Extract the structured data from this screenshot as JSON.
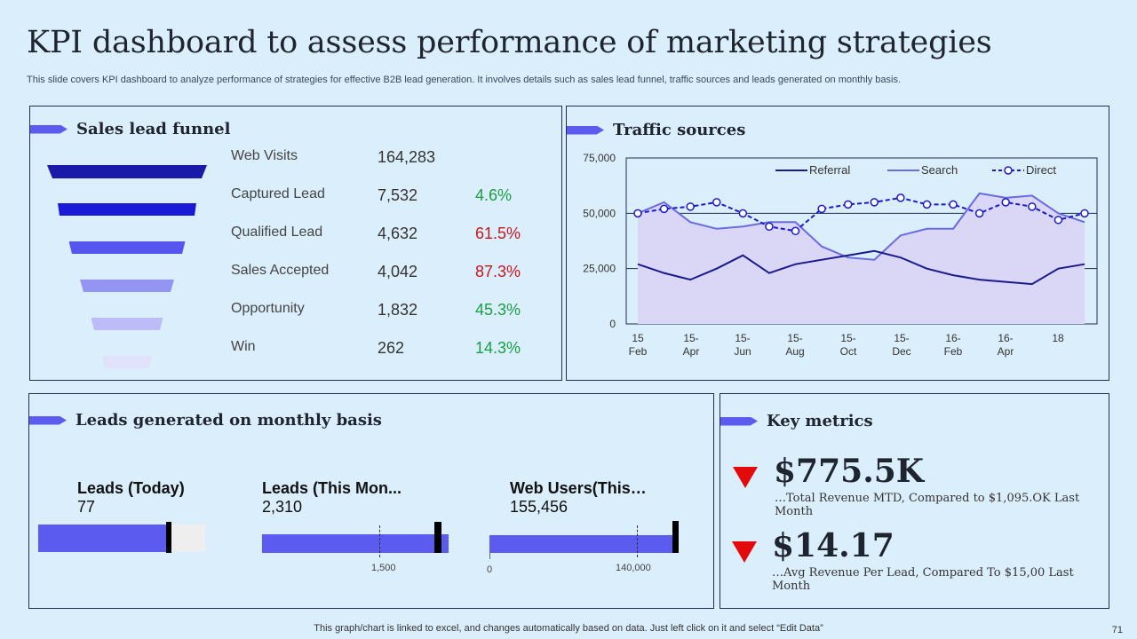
{
  "title": "KPI dashboard to assess performance of marketing strategies",
  "subtitle": "This slide covers KPI dashboard to analyze performance of strategies for effective B2B lead generation. It involves details such as sales lead funnel, traffic sources and leads generated on monthly basis.",
  "colors": {
    "accent": "#5b5bf0",
    "background": "#dbeefb",
    "positive": "#18a043",
    "negative": "#c8161d"
  },
  "funnel": {
    "heading": "Sales lead funnel",
    "rows": [
      {
        "label": "Web Visits",
        "value": "164,283",
        "pct": "",
        "color": "#1a1aa8"
      },
      {
        "label": "Captured Lead",
        "value": "7,532",
        "pct": "4.6%",
        "pct_status": "positive",
        "color": "#1a1ad6"
      },
      {
        "label": "Qualified Lead",
        "value": "4,632",
        "pct": "61.5%",
        "pct_status": "negative",
        "color": "#5656ee"
      },
      {
        "label": "Sales Accepted",
        "value": "4,042",
        "pct": "87.3%",
        "pct_status": "negative",
        "color": "#9494f5"
      },
      {
        "label": "Opportunity",
        "value": "1,832",
        "pct": "45.3%",
        "pct_status": "positive",
        "color": "#bcbcf8"
      },
      {
        "label": "Win",
        "value": "262",
        "pct": "14.3%",
        "pct_status": "positive",
        "color": "#e1e1fb"
      }
    ]
  },
  "traffic": {
    "heading": "Traffic sources"
  },
  "leads": {
    "heading": "Leads generated on monthly basis",
    "today": {
      "title": "Leads (Today)",
      "value": "77"
    },
    "month": {
      "title": "Leads (This Mon...",
      "value": "2,310",
      "tick_label": "1,500"
    },
    "web": {
      "title": "Web Users(This…",
      "value": "155,456",
      "tick0_label": "0",
      "tick_label": "140,000"
    }
  },
  "key_metrics": {
    "heading": "Key metrics",
    "items": [
      {
        "big": "$775.5K",
        "desc": "…Total Revenue MTD, Compared to $1,095.OK Last Month",
        "trend": "down"
      },
      {
        "big": "$14.17",
        "desc": "…Avg Revenue Per Lead, Compared To $15,00 Last Month",
        "trend": "down"
      }
    ]
  },
  "footer": "This graph/chart is linked to excel,  and changes automatically based on data. Just left click on it and select “Edit Data”",
  "page_number": "71",
  "chart_data": {
    "type": "line",
    "title": "Traffic sources",
    "x_ticks": [
      "15 Feb",
      "15- Apr",
      "15- Jun",
      "15- Aug",
      "15- Oct",
      "15- Dec",
      "16- Feb",
      "16- Apr",
      "18"
    ],
    "y_ticks": [
      "75,000",
      "50,000",
      "25,000",
      "0"
    ],
    "ylim": [
      0,
      75000
    ],
    "grid": true,
    "legend": [
      "Referral",
      "Search",
      "Direct"
    ],
    "legend_position": "top-right",
    "series": [
      {
        "name": "Referral",
        "values": [
          27000,
          23000,
          20000,
          25000,
          31000,
          23000,
          27000,
          29000,
          31000,
          33000,
          30000,
          25000,
          22000,
          20000,
          19000,
          18000,
          25000,
          27000
        ]
      },
      {
        "name": "Search",
        "values": [
          50000,
          55000,
          46000,
          43000,
          44000,
          46000,
          46000,
          35000,
          30000,
          29000,
          40000,
          43000,
          43000,
          59000,
          57000,
          58000,
          50000,
          46000
        ]
      },
      {
        "name": "Direct",
        "values": [
          50000,
          52000,
          53000,
          55000,
          50000,
          44000,
          42000,
          52000,
          54000,
          55000,
          57000,
          54000,
          54000,
          50000,
          55000,
          53000,
          47000,
          50000
        ]
      }
    ]
  }
}
